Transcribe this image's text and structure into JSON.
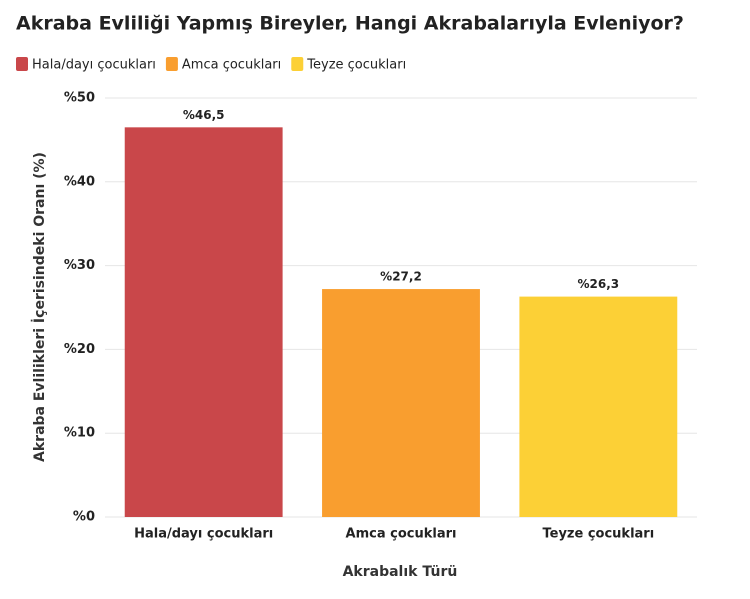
{
  "chart_data": {
    "type": "bar",
    "title": "Akraba Evliliği Yapmış Bireyler, Hangi Akrabalarıyla Evleniyor?",
    "x_label": "Akrabalık Türü",
    "y_label": "Akraba Evlilikleri İçerisindeki Oranı (%)",
    "categories": [
      "Hala/dayı çocukları",
      "Amca çocukları",
      "Teyze çocukları"
    ],
    "series": [
      {
        "name": "Hala/dayı çocukları",
        "color": "#c9474a",
        "values": [
          46.5,
          null,
          null
        ],
        "value_labels": [
          "%46,5",
          null,
          null
        ]
      },
      {
        "name": "Amca çocukları",
        "color": "#f99e2f",
        "values": [
          null,
          27.2,
          null
        ],
        "value_labels": [
          null,
          "%27,2",
          null
        ]
      },
      {
        "name": "Teyze çocukları",
        "color": "#fcd036",
        "values": [
          null,
          null,
          26.3
        ],
        "value_labels": [
          null,
          null,
          "%26,3"
        ]
      }
    ],
    "ylim": [
      0,
      50
    ],
    "yticks": [
      {
        "value": 0,
        "label": "%0"
      },
      {
        "value": 10,
        "label": "%10"
      },
      {
        "value": 20,
        "label": "%20"
      },
      {
        "value": 30,
        "label": "%30"
      },
      {
        "value": 40,
        "label": "%40"
      },
      {
        "value": 50,
        "label": "%50"
      }
    ],
    "grid": true
  }
}
